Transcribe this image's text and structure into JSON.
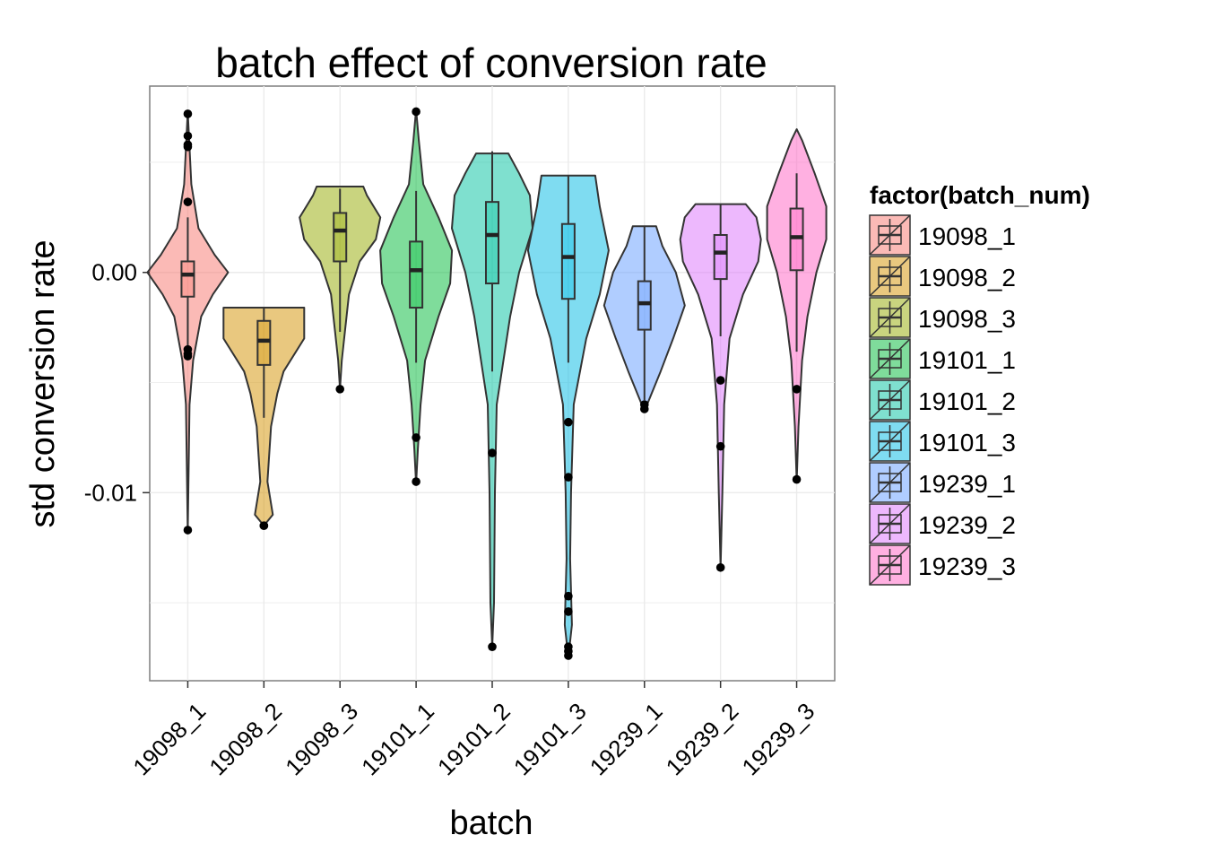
{
  "chart_data": {
    "type": "violin",
    "title": "batch effect of conversion rate",
    "xlabel": "batch",
    "ylabel": "std conversion rate",
    "ylim": [
      -0.01854,
      0.00846
    ],
    "yticks": [
      {
        "value": 0.0,
        "label": "0.00"
      },
      {
        "value": -0.01,
        "label": "-0.01"
      }
    ],
    "grid": true,
    "legend": {
      "title": "factor(batch_num)",
      "placement": "right"
    },
    "series": [
      {
        "name": "19098_1",
        "color": "#F8766D",
        "box": {
          "q1": -0.0011,
          "median": -0.0001,
          "q3": 0.0005,
          "whisker_low": -0.0035,
          "whisker_high": 0.0025
        },
        "outliers": [
          0.0072,
          0.0062,
          0.0058,
          0.0057,
          0.0032,
          -0.0035,
          -0.0037,
          -0.0038,
          -0.0117
        ],
        "violin": [
          [
            -0.0118,
            0.0
          ],
          [
            -0.006,
            0.002
          ],
          [
            -0.004,
            0.006
          ],
          [
            -0.002,
            0.015
          ],
          [
            -0.001,
            0.028
          ],
          [
            0.0,
            0.045
          ],
          [
            0.0008,
            0.03
          ],
          [
            0.002,
            0.012
          ],
          [
            0.004,
            0.004
          ],
          [
            0.0073,
            0.0
          ]
        ]
      },
      {
        "name": "19098_2",
        "color": "#D39200",
        "box": {
          "q1": -0.0042,
          "median": -0.0031,
          "q3": -0.0022,
          "whisker_low": -0.0066,
          "whisker_high": -0.0016
        },
        "outliers": [
          -0.0115,
          -0.0115
        ],
        "violin": [
          [
            -0.0115,
            0.0
          ],
          [
            -0.011,
            0.01
          ],
          [
            -0.0095,
            0.004
          ],
          [
            -0.007,
            0.008
          ],
          [
            -0.0055,
            0.015
          ],
          [
            -0.0045,
            0.022
          ],
          [
            -0.003,
            0.045
          ],
          [
            -0.0022,
            0.045
          ],
          [
            -0.0016,
            0.045
          ]
        ]
      },
      {
        "name": "19098_3",
        "color": "#93AA00",
        "box": {
          "q1": 0.0005,
          "median": 0.0019,
          "q3": 0.0027,
          "whisker_low": -0.0027,
          "whisker_high": 0.0038
        },
        "outliers": [
          -0.0053
        ],
        "violin": [
          [
            -0.0053,
            0.0
          ],
          [
            -0.004,
            0.002
          ],
          [
            -0.0025,
            0.006
          ],
          [
            -0.001,
            0.01
          ],
          [
            0.0005,
            0.022
          ],
          [
            0.0015,
            0.04
          ],
          [
            0.0025,
            0.045
          ],
          [
            0.0035,
            0.03
          ],
          [
            0.0039,
            0.026
          ]
        ]
      },
      {
        "name": "19101_1",
        "color": "#00BA38",
        "box": {
          "q1": -0.0016,
          "median": 0.0001,
          "q3": 0.0014,
          "whisker_low": -0.0041,
          "whisker_high": 0.0037
        },
        "outliers": [
          0.0073,
          -0.0075,
          -0.0095
        ],
        "violin": [
          [
            -0.0096,
            0.0
          ],
          [
            -0.008,
            0.002
          ],
          [
            -0.006,
            0.005
          ],
          [
            -0.004,
            0.01
          ],
          [
            -0.002,
            0.025
          ],
          [
            -0.0005,
            0.038
          ],
          [
            0.001,
            0.04
          ],
          [
            0.0025,
            0.025
          ],
          [
            0.004,
            0.008
          ],
          [
            0.006,
            0.003
          ],
          [
            0.0074,
            0.0
          ]
        ]
      },
      {
        "name": "19101_2",
        "color": "#00C19F",
        "box": {
          "q1": -0.0005,
          "median": 0.0017,
          "q3": 0.0032,
          "whisker_low": -0.0045,
          "whisker_high": 0.0055
        },
        "outliers": [
          -0.0082,
          -0.017
        ],
        "violin": [
          [
            -0.017,
            0.0
          ],
          [
            -0.015,
            0.002
          ],
          [
            -0.01,
            0.003
          ],
          [
            -0.006,
            0.005
          ],
          [
            -0.002,
            0.02
          ],
          [
            0.0,
            0.03
          ],
          [
            0.002,
            0.045
          ],
          [
            0.0035,
            0.042
          ],
          [
            0.0045,
            0.03
          ],
          [
            0.0054,
            0.018
          ]
        ]
      },
      {
        "name": "19101_3",
        "color": "#00B9E3",
        "box": {
          "q1": -0.0012,
          "median": 0.0007,
          "q3": 0.0022,
          "whisker_low": -0.0041,
          "whisker_high": 0.0044
        },
        "outliers": [
          -0.0068,
          -0.0093,
          -0.0147,
          -0.0154,
          -0.017,
          -0.0172,
          -0.0174
        ],
        "violin": [
          [
            -0.0175,
            0.0
          ],
          [
            -0.016,
            0.004
          ],
          [
            -0.013,
            0.002
          ],
          [
            -0.01,
            0.003
          ],
          [
            -0.006,
            0.006
          ],
          [
            -0.003,
            0.02
          ],
          [
            -0.001,
            0.035
          ],
          [
            0.001,
            0.045
          ],
          [
            0.003,
            0.035
          ],
          [
            0.0044,
            0.03
          ]
        ]
      },
      {
        "name": "19239_1",
        "color": "#619CFF",
        "box": {
          "q1": -0.0026,
          "median": -0.0014,
          "q3": -0.0004,
          "whisker_low": -0.0058,
          "whisker_high": 0.0021
        },
        "outliers": [
          -0.006,
          -0.0062
        ],
        "violin": [
          [
            -0.0063,
            0.0
          ],
          [
            -0.0055,
            0.008
          ],
          [
            -0.0045,
            0.018
          ],
          [
            -0.003,
            0.032
          ],
          [
            -0.0015,
            0.045
          ],
          [
            0.0,
            0.035
          ],
          [
            0.0012,
            0.02
          ],
          [
            0.0021,
            0.013
          ]
        ]
      },
      {
        "name": "19239_2",
        "color": "#DB72FB",
        "box": {
          "q1": -0.0003,
          "median": 0.0009,
          "q3": 0.0017,
          "whisker_low": -0.0029,
          "whisker_high": 0.0031
        },
        "outliers": [
          -0.0049,
          -0.0079,
          -0.0134
        ],
        "violin": [
          [
            -0.0134,
            0.0
          ],
          [
            -0.01,
            0.002
          ],
          [
            -0.006,
            0.004
          ],
          [
            -0.003,
            0.01
          ],
          [
            -0.001,
            0.025
          ],
          [
            0.0005,
            0.042
          ],
          [
            0.0015,
            0.045
          ],
          [
            0.0025,
            0.04
          ],
          [
            0.0031,
            0.028
          ]
        ]
      },
      {
        "name": "19239_3",
        "color": "#FF61C3",
        "box": {
          "q1": 0.0001,
          "median": 0.0016,
          "q3": 0.0029,
          "whisker_low": -0.0036,
          "whisker_high": 0.0045
        },
        "outliers": [
          -0.0053,
          -0.0094
        ],
        "violin": [
          [
            -0.0095,
            0.0
          ],
          [
            -0.007,
            0.002
          ],
          [
            -0.004,
            0.006
          ],
          [
            -0.002,
            0.012
          ],
          [
            0.0,
            0.022
          ],
          [
            0.0015,
            0.033
          ],
          [
            0.003,
            0.033
          ],
          [
            0.0045,
            0.02
          ],
          [
            0.006,
            0.006
          ],
          [
            0.0065,
            0.0
          ]
        ]
      }
    ]
  }
}
